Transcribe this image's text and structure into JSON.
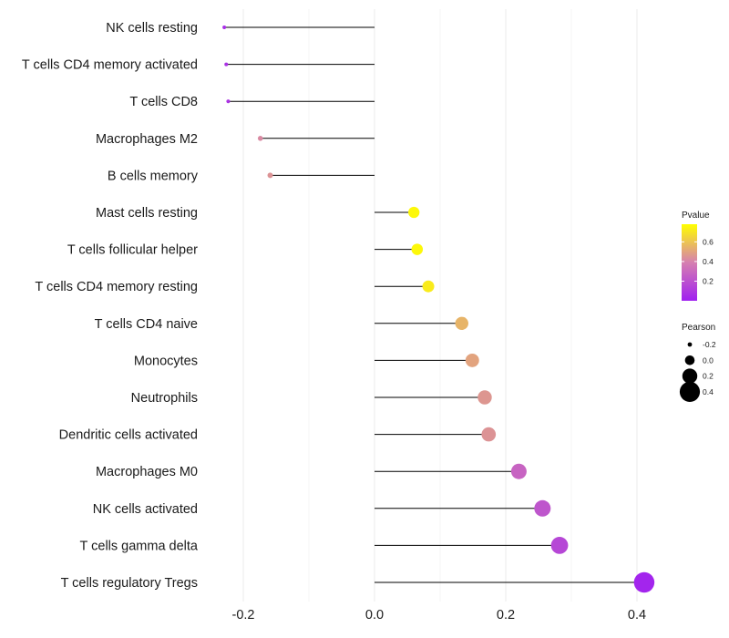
{
  "chart_data": {
    "type": "lollipop",
    "title": "",
    "xlabel": "",
    "ylabel": "",
    "xlim": [
      -0.24,
      0.44
    ],
    "x_ticks": [
      -0.2,
      0.0,
      0.2,
      0.4
    ],
    "x_tick_labels": [
      "-0.2",
      "0.0",
      "0.2",
      "0.4"
    ],
    "categories": [
      "NK cells resting",
      "T cells CD4 memory activated",
      "T cells CD8",
      "Macrophages M2",
      "B cells memory",
      "Mast cells resting",
      "T cells follicular helper",
      "T cells CD4 memory resting",
      "T cells CD4 naive",
      "Monocytes",
      "Neutrophils",
      "Dendritic cells activated",
      "Macrophages M0",
      "NK cells activated",
      "T cells gamma delta",
      "T cells regulatory  Tregs"
    ],
    "pearson": [
      -0.229,
      -0.226,
      -0.223,
      -0.174,
      -0.159,
      0.06,
      0.065,
      0.082,
      0.133,
      0.149,
      0.168,
      0.174,
      0.22,
      0.256,
      0.282,
      0.411
    ],
    "pvalue": [
      0.06,
      0.07,
      0.08,
      0.42,
      0.45,
      0.76,
      0.76,
      0.72,
      0.55,
      0.5,
      0.46,
      0.45,
      0.28,
      0.22,
      0.16,
      0.02
    ],
    "legend": {
      "color": {
        "title": "Pvalue",
        "range": [
          0.0,
          0.78
        ],
        "ticks": [
          0.2,
          0.4,
          0.6
        ],
        "tick_labels": [
          "0.2",
          "0.4",
          "0.6"
        ],
        "low_color": "#a020f0",
        "mid_color": "#d67fb0",
        "high_color": "#ffff00"
      },
      "size": {
        "title": "Pearson",
        "values": [
          -0.2,
          0.0,
          0.2,
          0.4
        ],
        "labels": [
          "-0.2",
          "0.0",
          "0.2",
          "0.4"
        ],
        "color": "#000000"
      }
    },
    "grid": true,
    "legend_position": "right"
  }
}
